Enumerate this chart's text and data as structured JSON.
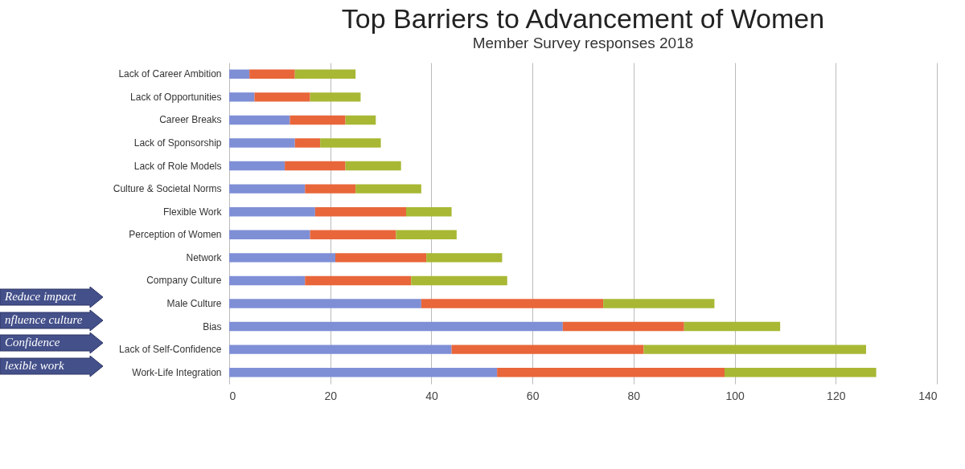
{
  "chart_data": {
    "type": "bar",
    "orientation": "horizontal",
    "stacked": true,
    "title": "Top Barriers to Advancement of Women",
    "subtitle": "Member Survey responses 2018",
    "categories": [
      "Lack of Career Ambition",
      "Lack of Opportunities",
      "Career Breaks",
      "Lack of Sponsorship",
      "Lack of Role Models",
      "Culture & Societal Norms",
      "Flexible Work",
      "Perception of Women",
      "Network",
      "Company Culture",
      "Male Culture",
      "Bias",
      "Lack of Self-Confidence",
      "Work-Life Integration"
    ],
    "series": [
      {
        "color": "#7f8fd6",
        "values": [
          4,
          5,
          12,
          13,
          11,
          15,
          17,
          16,
          21,
          15,
          38,
          66,
          44,
          53
        ]
      },
      {
        "color": "#e8663a",
        "values": [
          9,
          11,
          11,
          5,
          12,
          10,
          18,
          17,
          18,
          21,
          36,
          24,
          38,
          45
        ]
      },
      {
        "color": "#a8b834",
        "values": [
          12,
          10,
          6,
          12,
          11,
          13,
          9,
          12,
          15,
          19,
          22,
          19,
          44,
          30
        ]
      }
    ],
    "xlim": [
      0,
      140
    ],
    "xticks": [
      0,
      20,
      40,
      60,
      80,
      100,
      120,
      140
    ],
    "grid": "x",
    "legend": false,
    "annotations": [
      "Reduce impact",
      "nfluence culture",
      "Confidence",
      "lexible work"
    ]
  }
}
